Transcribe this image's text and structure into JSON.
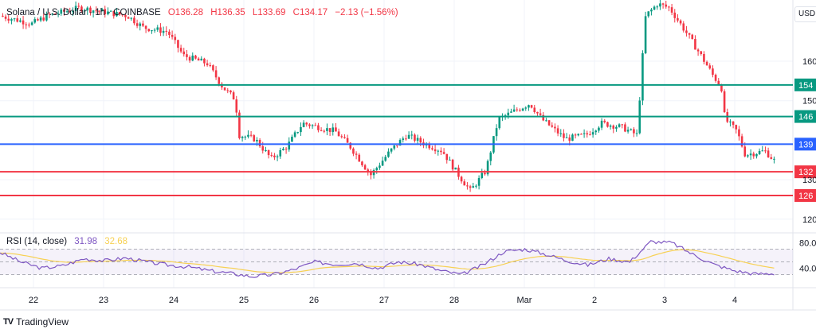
{
  "header": {
    "symbol": "Solana / U.S. Dollar · 1h · COINBASE",
    "open": "O136.28",
    "high": "H136.35",
    "low": "L133.69",
    "close": "C134.17",
    "change": "−2.13 (−1.56%)"
  },
  "currency_button": "USD",
  "rsi": {
    "label": "RSI (14, close)",
    "value": "31.98",
    "ma": "32.68"
  },
  "brand": "TradingView",
  "colors": {
    "up": "#089981",
    "down": "#f23645",
    "support": "#f23645",
    "resistance": "#089981",
    "pivot": "#2962ff",
    "rsi": "#7e57c2",
    "rsi_ma": "#f7d154"
  },
  "chart_data": {
    "type": "candlestick",
    "title": "Solana / U.S. Dollar · 1h · COINBASE",
    "x_unit": "days since Feb 22 00:00",
    "x_ticks": [
      {
        "label": "22",
        "t": 0
      },
      {
        "label": "23",
        "t": 1
      },
      {
        "label": "24",
        "t": 2
      },
      {
        "label": "25",
        "t": 3
      },
      {
        "label": "26",
        "t": 4
      },
      {
        "label": "27",
        "t": 5
      },
      {
        "label": "28",
        "t": 6
      },
      {
        "label": "Mar",
        "t": 7
      },
      {
        "label": "2",
        "t": 8
      },
      {
        "label": "3",
        "t": 9
      },
      {
        "label": "4",
        "t": 10
      }
    ],
    "y_ticks": [
      {
        "label": "160",
        "v": 160
      },
      {
        "label": "150",
        "v": 150
      },
      {
        "label": "130",
        "v": 130
      },
      {
        "label": "120",
        "v": 120
      }
    ],
    "ylim": [
      115,
      176
    ],
    "levels": [
      {
        "label": "154",
        "v": 154,
        "kind": "resistance"
      },
      {
        "label": "146",
        "v": 146,
        "kind": "resistance"
      },
      {
        "label": "139",
        "v": 139,
        "kind": "pivot"
      },
      {
        "label": "132",
        "v": 132,
        "kind": "support"
      },
      {
        "label": "126",
        "v": 126,
        "kind": "support"
      }
    ],
    "price_path": [
      [
        -0.48,
        171.5
      ],
      [
        -0.02,
        169.5
      ],
      [
        0.2,
        171.5
      ],
      [
        0.66,
        173.5
      ],
      [
        1.0,
        172.5
      ],
      [
        1.34,
        171.5
      ],
      [
        1.57,
        168.5
      ],
      [
        1.91,
        167.5
      ],
      [
        2.14,
        161.4
      ],
      [
        2.48,
        159.4
      ],
      [
        2.7,
        153.4
      ],
      [
        2.88,
        150.3
      ],
      [
        2.93,
        141.3
      ],
      [
        3.16,
        140.3
      ],
      [
        3.39,
        135.3
      ],
      [
        3.61,
        138.3
      ],
      [
        3.84,
        144.3
      ],
      [
        4.07,
        143.3
      ],
      [
        4.3,
        142.3
      ],
      [
        4.52,
        138.3
      ],
      [
        4.81,
        131.2
      ],
      [
        5.09,
        137.3
      ],
      [
        5.32,
        141.3
      ],
      [
        5.55,
        139.3
      ],
      [
        5.83,
        137.3
      ],
      [
        6.06,
        131.2
      ],
      [
        6.23,
        127.2
      ],
      [
        6.45,
        132.2
      ],
      [
        6.63,
        145.3
      ],
      [
        6.85,
        147.3
      ],
      [
        7.08,
        149.3
      ],
      [
        7.25,
        145.3
      ],
      [
        7.59,
        140.3
      ],
      [
        7.88,
        141.3
      ],
      [
        8.1,
        144.3
      ],
      [
        8.39,
        143.3
      ],
      [
        8.61,
        141.3
      ],
      [
        8.67,
        157.4
      ],
      [
        8.73,
        171.5
      ],
      [
        8.9,
        174.5
      ],
      [
        9.07,
        173.5
      ],
      [
        9.3,
        167.5
      ],
      [
        9.52,
        161.4
      ],
      [
        9.69,
        156.4
      ],
      [
        9.81,
        153.4
      ],
      [
        9.86,
        145.3
      ],
      [
        10.03,
        142.3
      ],
      [
        10.15,
        136.3
      ],
      [
        10.43,
        137.3
      ],
      [
        10.6,
        134.2
      ]
    ],
    "rsi_axis": [
      {
        "label": "80.00",
        "v": 80
      },
      {
        "label": "40.00",
        "v": 40
      }
    ],
    "rsi_bands": [
      70,
      50,
      30
    ],
    "rsi_path": [
      65,
      50,
      40,
      44,
      55,
      52,
      56,
      50,
      45,
      42,
      36,
      32,
      27,
      30,
      38,
      50,
      46,
      48,
      40,
      50,
      46,
      36,
      30,
      45,
      66,
      70,
      62,
      52,
      45,
      55,
      50,
      82,
      80,
      62,
      46,
      36,
      31,
      32
    ]
  }
}
